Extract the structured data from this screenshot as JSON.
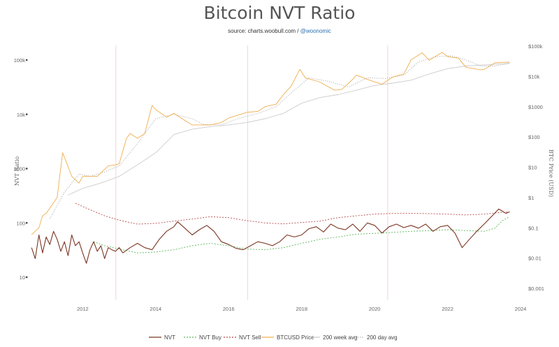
{
  "chart_data": {
    "type": "line",
    "title": "Bitcoin NVT Ratio",
    "subtitle_prefix": "source: charts.woobull.com / ",
    "subtitle_handle": "@woonomic",
    "ylabel_left": "NVT Ratio",
    "ylabel_right": "BTC Price (USD)",
    "x_ticks": [
      "2012",
      "2014",
      "2016",
      "2018",
      "2020",
      "2022",
      "2024"
    ],
    "left_axis": {
      "scale": "log",
      "range": [
        10,
        100000
      ],
      "ticks": [
        {
          "v": 10,
          "label": "10"
        },
        {
          "v": 100,
          "label": "100"
        },
        {
          "v": 1000,
          "label": "1000"
        },
        {
          "v": 10000,
          "label": "10k"
        },
        {
          "v": 100000,
          "label": "100k"
        }
      ]
    },
    "right_axis": {
      "scale": "log",
      "range": [
        0.001,
        100000
      ],
      "ticks": [
        {
          "v": 0.001,
          "label": "$0.001"
        },
        {
          "v": 0.01,
          "label": "$0.01"
        },
        {
          "v": 0.1,
          "label": "$0.1"
        },
        {
          "v": 1,
          "label": "$1"
        },
        {
          "v": 10,
          "label": "$10"
        },
        {
          "v": 100,
          "label": "$100"
        },
        {
          "v": 1000,
          "label": "$1000"
        },
        {
          "v": 10000,
          "label": "$10k"
        },
        {
          "v": 100000,
          "label": "$100k"
        }
      ]
    },
    "halvings": [
      2012.91,
      2016.52,
      2020.36
    ],
    "legend_position": "bottom",
    "series": [
      {
        "name": "NVT",
        "color": "#7a3522",
        "dash": "none",
        "axis": "left",
        "points": [
          [
            2010.6,
            35
          ],
          [
            2010.7,
            22
          ],
          [
            2010.8,
            60
          ],
          [
            2010.9,
            28
          ],
          [
            2011.0,
            55
          ],
          [
            2011.1,
            40
          ],
          [
            2011.2,
            70
          ],
          [
            2011.3,
            50
          ],
          [
            2011.4,
            30
          ],
          [
            2011.5,
            45
          ],
          [
            2011.6,
            25
          ],
          [
            2011.7,
            60
          ],
          [
            2011.8,
            38
          ],
          [
            2011.9,
            45
          ],
          [
            2012.0,
            28
          ],
          [
            2012.1,
            18
          ],
          [
            2012.2,
            32
          ],
          [
            2012.3,
            45
          ],
          [
            2012.4,
            30
          ],
          [
            2012.5,
            38
          ],
          [
            2012.6,
            22
          ],
          [
            2012.7,
            35
          ],
          [
            2012.8,
            32
          ],
          [
            2012.9,
            30
          ],
          [
            2013.0,
            35
          ],
          [
            2013.1,
            28
          ],
          [
            2013.3,
            35
          ],
          [
            2013.5,
            42
          ],
          [
            2013.7,
            35
          ],
          [
            2013.9,
            32
          ],
          [
            2014.1,
            50
          ],
          [
            2014.3,
            70
          ],
          [
            2014.5,
            85
          ],
          [
            2014.6,
            105
          ],
          [
            2014.8,
            80
          ],
          [
            2015.0,
            60
          ],
          [
            2015.2,
            75
          ],
          [
            2015.4,
            90
          ],
          [
            2015.6,
            70
          ],
          [
            2015.8,
            45
          ],
          [
            2016.0,
            40
          ],
          [
            2016.2,
            34
          ],
          [
            2016.4,
            32
          ],
          [
            2016.6,
            38
          ],
          [
            2016.8,
            45
          ],
          [
            2017.0,
            42
          ],
          [
            2017.2,
            38
          ],
          [
            2017.4,
            45
          ],
          [
            2017.6,
            60
          ],
          [
            2017.8,
            55
          ],
          [
            2018.0,
            60
          ],
          [
            2018.2,
            78
          ],
          [
            2018.4,
            85
          ],
          [
            2018.6,
            68
          ],
          [
            2018.8,
            95
          ],
          [
            2019.0,
            80
          ],
          [
            2019.2,
            75
          ],
          [
            2019.4,
            95
          ],
          [
            2019.6,
            70
          ],
          [
            2019.8,
            100
          ],
          [
            2020.0,
            90
          ],
          [
            2020.2,
            65
          ],
          [
            2020.4,
            85
          ],
          [
            2020.6,
            95
          ],
          [
            2020.8,
            82
          ],
          [
            2021.0,
            90
          ],
          [
            2021.2,
            80
          ],
          [
            2021.4,
            95
          ],
          [
            2021.6,
            70
          ],
          [
            2021.8,
            85
          ],
          [
            2022.0,
            90
          ],
          [
            2022.2,
            65
          ],
          [
            2022.4,
            35
          ],
          [
            2022.6,
            50
          ],
          [
            2022.8,
            70
          ],
          [
            2023.0,
            95
          ],
          [
            2023.2,
            130
          ],
          [
            2023.4,
            180
          ],
          [
            2023.6,
            150
          ],
          [
            2023.7,
            160
          ]
        ]
      },
      {
        "name": "NVT Buy",
        "color": "#5cb85c",
        "dash": "2,2",
        "axis": "left",
        "points": [
          [
            2012.3,
            45
          ],
          [
            2012.6,
            38
          ],
          [
            2013.0,
            33
          ],
          [
            2013.5,
            28
          ],
          [
            2014.0,
            29
          ],
          [
            2014.5,
            32
          ],
          [
            2015.0,
            38
          ],
          [
            2015.5,
            42
          ],
          [
            2016.0,
            38
          ],
          [
            2016.5,
            33
          ],
          [
            2017.0,
            32
          ],
          [
            2017.5,
            35
          ],
          [
            2018.0,
            42
          ],
          [
            2018.5,
            50
          ],
          [
            2019.0,
            55
          ],
          [
            2019.5,
            62
          ],
          [
            2020.0,
            64
          ],
          [
            2020.5,
            67
          ],
          [
            2021.0,
            70
          ],
          [
            2021.5,
            72
          ],
          [
            2022.0,
            75
          ],
          [
            2022.5,
            72
          ],
          [
            2023.0,
            70
          ],
          [
            2023.3,
            80
          ],
          [
            2023.5,
            110
          ],
          [
            2023.7,
            130
          ]
        ]
      },
      {
        "name": "NVT Sell",
        "color": "#b94a48",
        "dash": "2,2",
        "axis": "left",
        "points": [
          [
            2011.8,
            230
          ],
          [
            2012.2,
            175
          ],
          [
            2012.6,
            135
          ],
          [
            2013.0,
            112
          ],
          [
            2013.5,
            95
          ],
          [
            2014.0,
            98
          ],
          [
            2014.5,
            108
          ],
          [
            2015.0,
            118
          ],
          [
            2015.5,
            130
          ],
          [
            2016.0,
            125
          ],
          [
            2016.5,
            110
          ],
          [
            2017.0,
            100
          ],
          [
            2017.5,
            96
          ],
          [
            2018.0,
            102
          ],
          [
            2018.5,
            108
          ],
          [
            2019.0,
            125
          ],
          [
            2019.5,
            135
          ],
          [
            2020.0,
            145
          ],
          [
            2020.5,
            150
          ],
          [
            2021.0,
            150
          ],
          [
            2021.5,
            148
          ],
          [
            2022.0,
            145
          ],
          [
            2022.5,
            140
          ],
          [
            2023.0,
            145
          ],
          [
            2023.4,
            155
          ],
          [
            2023.7,
            160
          ]
        ]
      },
      {
        "name": "BTCUSD Price",
        "color": "#f0ad4e",
        "dash": "none",
        "axis": "right",
        "points": [
          [
            2010.6,
            0.06
          ],
          [
            2010.8,
            0.1
          ],
          [
            2010.9,
            0.25
          ],
          [
            2011.0,
            0.3
          ],
          [
            2011.3,
            1
          ],
          [
            2011.45,
            30
          ],
          [
            2011.55,
            15
          ],
          [
            2011.7,
            5
          ],
          [
            2011.9,
            3
          ],
          [
            2012.0,
            5
          ],
          [
            2012.4,
            5
          ],
          [
            2012.7,
            11
          ],
          [
            2012.9,
            12
          ],
          [
            2013.0,
            13
          ],
          [
            2013.2,
            90
          ],
          [
            2013.3,
            130
          ],
          [
            2013.5,
            90
          ],
          [
            2013.7,
            130
          ],
          [
            2013.9,
            1100
          ],
          [
            2014.0,
            800
          ],
          [
            2014.3,
            450
          ],
          [
            2014.5,
            600
          ],
          [
            2014.8,
            350
          ],
          [
            2015.0,
            250
          ],
          [
            2015.5,
            250
          ],
          [
            2015.8,
            300
          ],
          [
            2016.0,
            420
          ],
          [
            2016.5,
            650
          ],
          [
            2016.8,
            700
          ],
          [
            2017.0,
            1000
          ],
          [
            2017.3,
            1200
          ],
          [
            2017.5,
            2500
          ],
          [
            2017.7,
            4500
          ],
          [
            2017.95,
            17000
          ],
          [
            2018.1,
            9000
          ],
          [
            2018.5,
            6500
          ],
          [
            2018.9,
            3500
          ],
          [
            2019.1,
            3700
          ],
          [
            2019.4,
            8000
          ],
          [
            2019.5,
            11000
          ],
          [
            2019.9,
            7200
          ],
          [
            2020.2,
            5500
          ],
          [
            2020.5,
            9500
          ],
          [
            2020.8,
            12000
          ],
          [
            2021.0,
            35000
          ],
          [
            2021.3,
            60000
          ],
          [
            2021.5,
            34000
          ],
          [
            2021.85,
            62000
          ],
          [
            2022.0,
            45000
          ],
          [
            2022.3,
            40000
          ],
          [
            2022.5,
            20000
          ],
          [
            2022.9,
            16500
          ],
          [
            2023.0,
            17000
          ],
          [
            2023.3,
            28000
          ],
          [
            2023.5,
            29000
          ],
          [
            2023.7,
            29500
          ]
        ]
      },
      {
        "name": "200 week avg",
        "color": "#cccccc",
        "dash": "none",
        "axis": "right",
        "points": [
          [
            2011.6,
            1.2
          ],
          [
            2012.0,
            2
          ],
          [
            2012.5,
            3
          ],
          [
            2013.0,
            5
          ],
          [
            2013.5,
            12
          ],
          [
            2014.0,
            30
          ],
          [
            2014.5,
            120
          ],
          [
            2015.0,
            180
          ],
          [
            2015.5,
            220
          ],
          [
            2016.0,
            250
          ],
          [
            2016.5,
            300
          ],
          [
            2017.0,
            400
          ],
          [
            2017.5,
            600
          ],
          [
            2018.0,
            1300
          ],
          [
            2018.5,
            2000
          ],
          [
            2019.0,
            2500
          ],
          [
            2019.5,
            3500
          ],
          [
            2020.0,
            5000
          ],
          [
            2020.5,
            6000
          ],
          [
            2021.0,
            7500
          ],
          [
            2021.5,
            12000
          ],
          [
            2022.0,
            18000
          ],
          [
            2022.5,
            22000
          ],
          [
            2023.0,
            24000
          ],
          [
            2023.5,
            26000
          ],
          [
            2023.7,
            27000
          ]
        ]
      },
      {
        "name": "200 day avg",
        "color": "#999999",
        "dash": "1,2",
        "axis": "right",
        "points": [
          [
            2011.1,
            0.2
          ],
          [
            2011.5,
            1.5
          ],
          [
            2011.9,
            6
          ],
          [
            2012.2,
            5
          ],
          [
            2012.6,
            7
          ],
          [
            2013.0,
            11
          ],
          [
            2013.5,
            60
          ],
          [
            2014.0,
            400
          ],
          [
            2014.5,
            560
          ],
          [
            2015.0,
            400
          ],
          [
            2015.3,
            260
          ],
          [
            2015.8,
            250
          ],
          [
            2016.3,
            420
          ],
          [
            2016.8,
            600
          ],
          [
            2017.3,
            1000
          ],
          [
            2017.8,
            3500
          ],
          [
            2018.2,
            9000
          ],
          [
            2018.7,
            7000
          ],
          [
            2019.0,
            5500
          ],
          [
            2019.3,
            4500
          ],
          [
            2019.8,
            9000
          ],
          [
            2020.3,
            8500
          ],
          [
            2020.8,
            11000
          ],
          [
            2021.2,
            30000
          ],
          [
            2021.7,
            45000
          ],
          [
            2022.1,
            48000
          ],
          [
            2022.5,
            35000
          ],
          [
            2022.9,
            22000
          ],
          [
            2023.3,
            22000
          ],
          [
            2023.7,
            27000
          ]
        ]
      }
    ]
  }
}
